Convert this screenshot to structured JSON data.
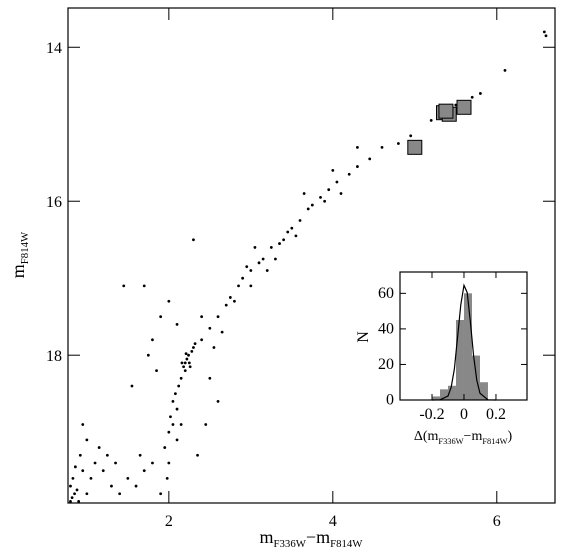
{
  "chart_data": [
    {
      "type": "scatter",
      "xlabel": [
        "m",
        "F336W",
        "−m",
        "F814W"
      ],
      "ylabel": [
        "m",
        "F814W"
      ],
      "xlim": [
        0.77,
        6.71
      ],
      "ylim": [
        19.92,
        13.49
      ],
      "xticks": [
        2,
        4,
        6
      ],
      "yticks": [
        14,
        16,
        18
      ],
      "series": [
        {
          "color": "#000000",
          "marker": "dot",
          "x": [
            0.8,
            0.82,
            0.85,
            0.8,
            0.88,
            0.9,
            0.83,
            0.95,
            0.86,
            1.0,
            0.92,
            1.05,
            1.1,
            1.15,
            1.0,
            1.2,
            1.25,
            1.3,
            1.35,
            0.95,
            1.4,
            1.5,
            1.6,
            1.7,
            1.8,
            1.65,
            1.9,
            1.55,
            1.45,
            1.95,
            2.0,
            2.02,
            2.05,
            2.05,
            2.08,
            2.1,
            2.12,
            2.15,
            2.0,
            1.98,
            2.1,
            2.15,
            2.18,
            2.2,
            2.22,
            2.24,
            2.2,
            2.25,
            2.28,
            2.3,
            2.16,
            2.26,
            2.21,
            2.32,
            1.8,
            1.85,
            1.9,
            2.0,
            1.7,
            2.3,
            2.4,
            2.5,
            2.6,
            2.45,
            2.35,
            1.75,
            2.1,
            2.55,
            2.4,
            2.5,
            2.6,
            2.7,
            2.75,
            2.85,
            2.9,
            3.0,
            3.1,
            3.15,
            3.25,
            3.35,
            3.45,
            3.5,
            3.6,
            3.7,
            3.75,
            3.85,
            3.95,
            4.05,
            4.2,
            4.3,
            4.45,
            4.6,
            4.8,
            4.95,
            5.2,
            5.5,
            5.7,
            5.8,
            6.1,
            6.6,
            6.58,
            2.8,
            3.0,
            3.2,
            3.4,
            3.65,
            3.9,
            4.1,
            4.3,
            2.65,
            3.05,
            3.55,
            4.0,
            2.95,
            3.3
          ],
          "values": [
            19.9,
            19.85,
            19.8,
            19.7,
            19.75,
            19.9,
            19.6,
            19.5,
            19.45,
            19.8,
            19.3,
            19.6,
            19.4,
            19.2,
            19.1,
            19.5,
            19.3,
            19.7,
            19.4,
            18.9,
            19.8,
            19.6,
            19.7,
            19.5,
            19.4,
            19.3,
            19.8,
            18.4,
            17.1,
            19.2,
            19.0,
            18.8,
            18.9,
            18.6,
            18.5,
            18.7,
            18.4,
            18.3,
            19.4,
            19.6,
            19.1,
            18.9,
            18.15,
            18.1,
            18.05,
            18.0,
            18.2,
            18.1,
            17.95,
            17.9,
            18.1,
            18.15,
            17.98,
            17.85,
            17.8,
            18.2,
            17.5,
            17.3,
            17.1,
            16.5,
            17.5,
            18.3,
            18.6,
            18.9,
            19.3,
            18.0,
            17.6,
            17.9,
            17.8,
            17.65,
            17.5,
            17.35,
            17.25,
            17.1,
            17.0,
            16.9,
            16.8,
            16.75,
            16.6,
            16.55,
            16.4,
            16.35,
            16.25,
            16.1,
            16.05,
            15.95,
            15.85,
            15.75,
            15.65,
            15.55,
            15.45,
            15.3,
            15.25,
            15.15,
            14.95,
            14.75,
            14.65,
            14.6,
            14.3,
            13.85,
            13.8,
            17.3,
            17.1,
            16.9,
            16.5,
            15.9,
            16.0,
            15.9,
            15.3,
            17.7,
            16.6,
            16.45,
            15.6,
            16.85,
            16.75
          ]
        },
        {
          "color": "#888888",
          "marker": "square",
          "x": [
            5.35,
            5.42,
            5.38,
            5.6,
            5.0
          ],
          "values": [
            14.85,
            14.87,
            14.83,
            14.78,
            15.3
          ]
        }
      ]
    },
    {
      "type": "histogram",
      "xlabel": [
        "Δ(m",
        "F336W",
        "−m",
        "F814W",
        ")"
      ],
      "ylabel": "N",
      "xlim": [
        -0.4,
        0.394
      ],
      "ylim": [
        0,
        72
      ],
      "xticks": [
        -0.2,
        0,
        0.2
      ],
      "yticks": [
        0,
        20,
        40,
        60
      ],
      "color": "#888888",
      "bins": [
        -0.2,
        -0.15,
        -0.1,
        -0.05,
        0,
        0.05,
        0.1,
        0.15
      ],
      "values": [
        2,
        6,
        8,
        45,
        60,
        25,
        10
      ],
      "curve": {
        "color": "#000000",
        "x": [
          -0.2,
          -0.15,
          -0.1,
          -0.08,
          -0.06,
          -0.04,
          -0.02,
          0,
          0.02,
          0.04,
          0.06,
          0.08,
          0.1,
          0.15,
          0.2
        ],
        "values": [
          0,
          0.1,
          2.2,
          7.2,
          17.5,
          35.5,
          53.5,
          64.5,
          60.5,
          44,
          25,
          11.2,
          3.8,
          0.1,
          0
        ]
      }
    }
  ]
}
